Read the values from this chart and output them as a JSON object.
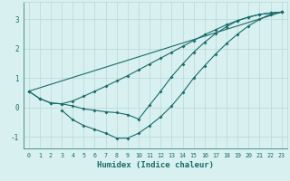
{
  "xlabel": "Humidex (Indice chaleur)",
  "xlim": [
    -0.5,
    23.5
  ],
  "ylim": [
    -1.4,
    3.6
  ],
  "xticks": [
    0,
    1,
    2,
    3,
    4,
    5,
    6,
    7,
    8,
    9,
    10,
    11,
    12,
    13,
    14,
    15,
    16,
    17,
    18,
    19,
    20,
    21,
    22,
    23
  ],
  "yticks": [
    -1,
    0,
    1,
    2,
    3
  ],
  "background_color": "#d8f0f0",
  "grid_color": "#b8d8d8",
  "line_color": "#1a6b6b",
  "curves": [
    {
      "x": [
        0,
        1,
        2,
        3,
        4,
        5,
        6,
        7,
        8,
        9,
        10,
        11,
        12,
        13,
        14,
        15,
        16,
        17,
        18,
        19,
        20,
        21,
        22,
        23
      ],
      "y": [
        0.55,
        0.3,
        0.15,
        0.12,
        0.22,
        0.38,
        0.55,
        0.72,
        0.9,
        1.08,
        1.28,
        1.48,
        1.68,
        1.88,
        2.08,
        2.28,
        2.48,
        2.65,
        2.82,
        2.96,
        3.08,
        3.17,
        3.22,
        3.25
      ],
      "marker": true
    },
    {
      "x": [
        0,
        1,
        2,
        3,
        4,
        5,
        6,
        7,
        8,
        9,
        10,
        11,
        12,
        13,
        14,
        15,
        16,
        17,
        18,
        19,
        20,
        21,
        22,
        23
      ],
      "y": [
        0.55,
        0.3,
        0.15,
        0.12,
        0.05,
        -0.05,
        -0.1,
        -0.15,
        -0.18,
        -0.25,
        -0.4,
        0.08,
        0.55,
        1.05,
        1.48,
        1.88,
        2.22,
        2.52,
        2.75,
        2.96,
        3.08,
        3.17,
        3.22,
        3.25
      ],
      "marker": true
    },
    {
      "x": [
        3,
        4,
        5,
        6,
        7,
        8,
        9,
        10,
        11,
        12,
        13,
        14,
        15,
        16,
        17,
        18,
        19,
        20,
        21,
        22,
        23
      ],
      "y": [
        -0.1,
        -0.42,
        -0.62,
        -0.75,
        -0.88,
        -1.05,
        -1.05,
        -0.88,
        -0.62,
        -0.32,
        0.05,
        0.5,
        1.0,
        1.42,
        1.82,
        2.18,
        2.5,
        2.78,
        3.0,
        3.18,
        3.25
      ],
      "marker": true
    },
    {
      "x": [
        0,
        23
      ],
      "y": [
        0.55,
        3.25
      ],
      "marker": false
    }
  ]
}
